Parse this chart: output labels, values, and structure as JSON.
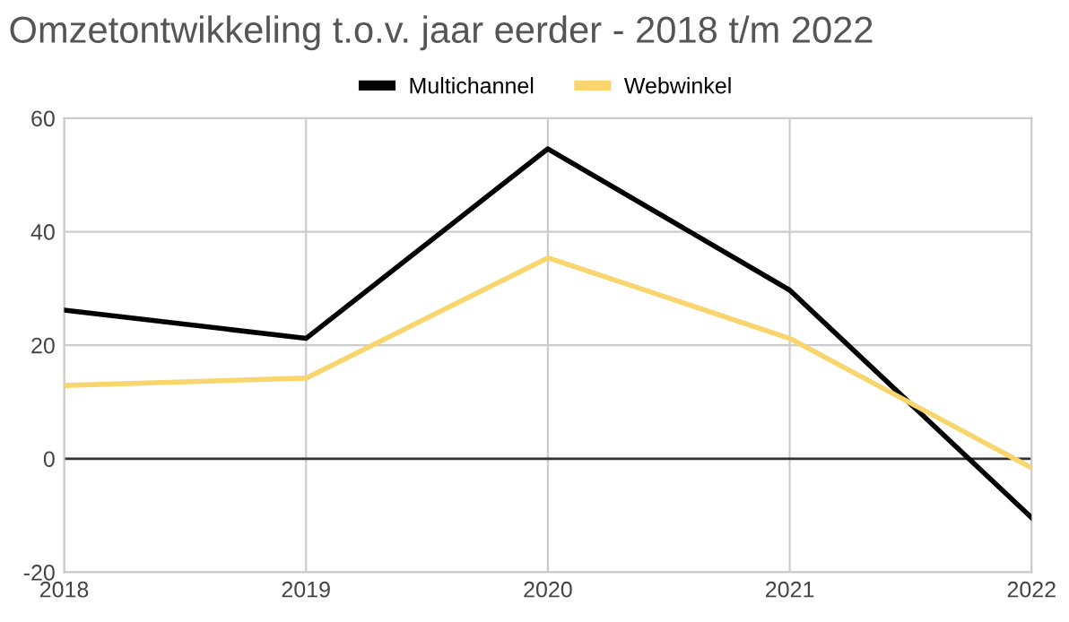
{
  "chart_data": {
    "type": "line",
    "title": "Omzetontwikkeling t.o.v. jaar eerder - 2018 t/m 2022",
    "x": [
      2018,
      2019,
      2020,
      2021,
      2022
    ],
    "series": [
      {
        "name": "Multichannel",
        "color": "#000000",
        "values": [
          26.2,
          21.2,
          54.6,
          29.7,
          -10.4
        ]
      },
      {
        "name": "Webwinkel",
        "color": "#f9d56e",
        "values": [
          12.9,
          14.2,
          35.4,
          21.2,
          -1.6
        ]
      }
    ],
    "xlim": [
      2018,
      2022
    ],
    "xticks": [
      2018,
      2019,
      2020,
      2021,
      2022
    ],
    "ylim": [
      -20,
      60
    ],
    "yticks": [
      -20,
      0,
      20,
      40,
      60
    ],
    "ref_lines": [
      {
        "axis": "y",
        "value": 0,
        "color": "#333333"
      }
    ],
    "grid": true,
    "legend": "top",
    "marker": "none",
    "line_style": "solid"
  }
}
